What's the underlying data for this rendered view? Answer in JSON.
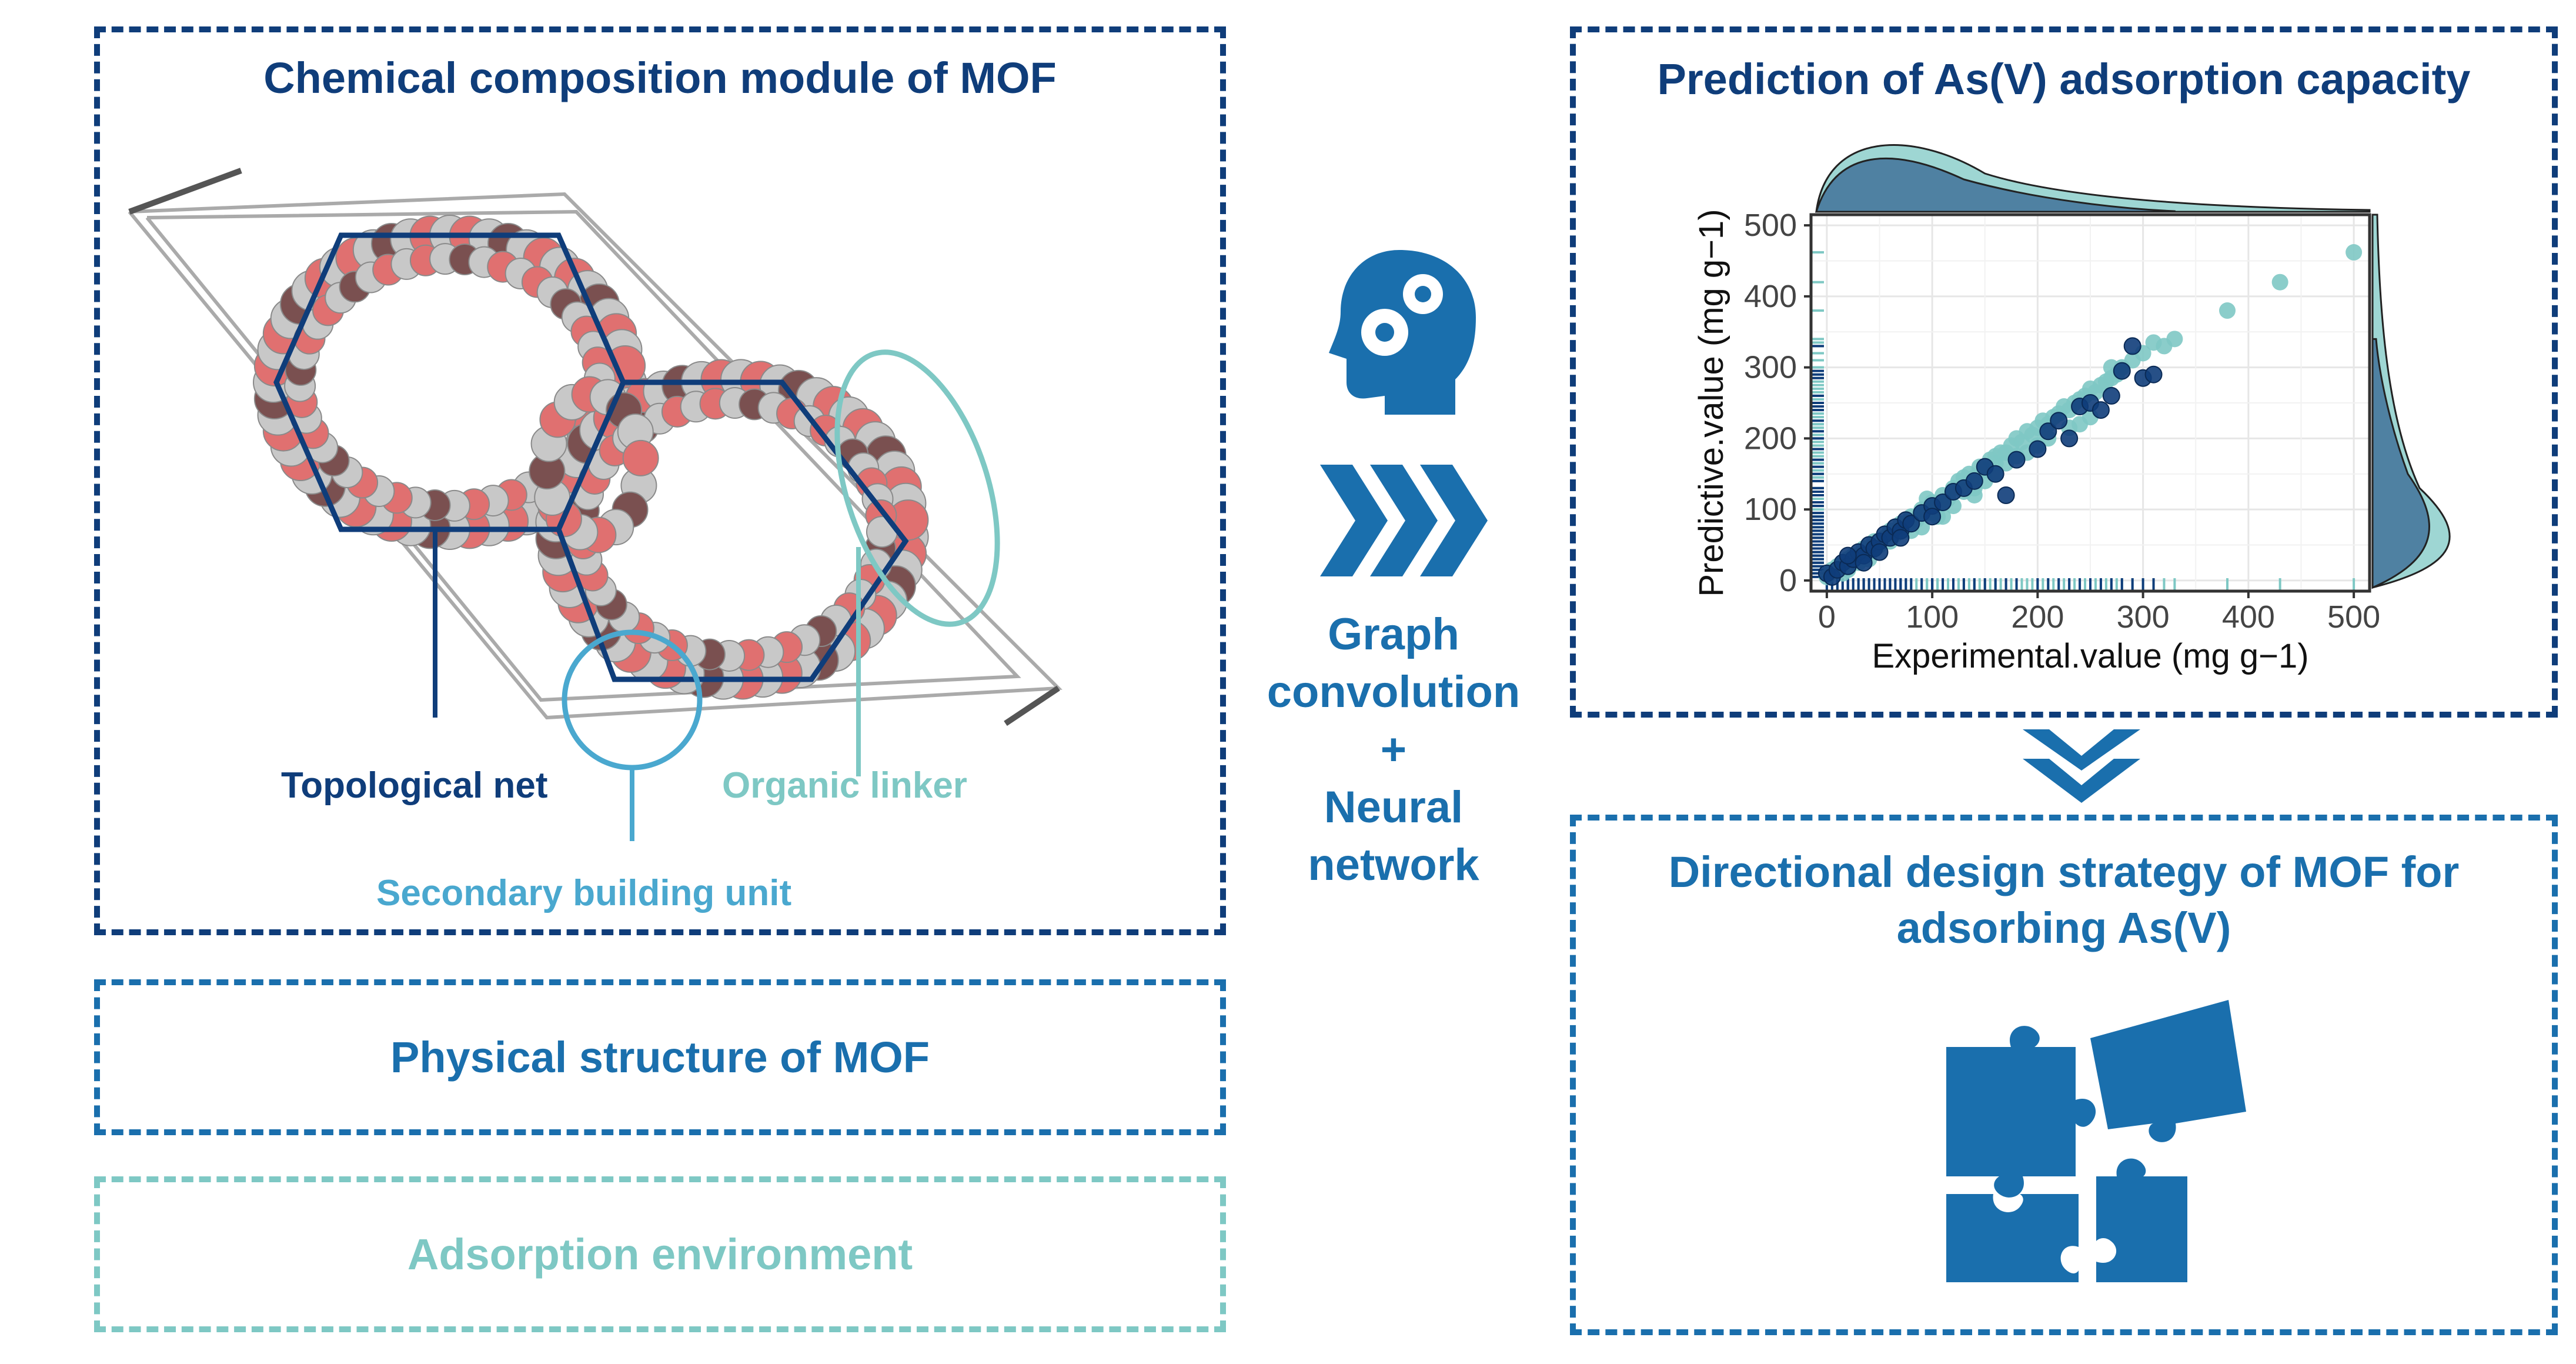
{
  "colors": {
    "dark_blue": "#0f3d7a",
    "mid_blue": "#1a6fad",
    "teal": "#7ec8c4",
    "light_blue": "#4aa8cf",
    "atom_red": "#e07070",
    "atom_dark": "#7a5050",
    "atom_grey": "#c8c8c8"
  },
  "chemical_panel": {
    "title": "Chemical composition module of MOF",
    "labels": {
      "topological_net": "Topological net",
      "organic_linker": "Organic linker",
      "secondary_building_unit": "Secondary building unit"
    }
  },
  "physical_panel": {
    "title": "Physical structure of MOF"
  },
  "environment_panel": {
    "title": "Adsorption environment"
  },
  "middle": {
    "icons": [
      "head-gears-icon",
      "triple-chevron-right-icon"
    ],
    "text": [
      "Graph",
      "convolution",
      "+",
      "Neural",
      "network"
    ]
  },
  "prediction_panel": {
    "title": "Prediction of As(V)  adsorption capacity"
  },
  "design_panel": {
    "title_line1": "Directional design strategy  of MOF for",
    "title_line2": "adsorbing As(V)",
    "icon": "puzzle-pieces-icon"
  },
  "chart_data": {
    "type": "scatter",
    "xlabel": "Experimental.value (mg g−1)",
    "ylabel": "Predictive.value (mg g−1)",
    "xlim": [
      -15,
      515
    ],
    "ylim": [
      -15,
      515
    ],
    "x_ticks": [
      "0",
      "100",
      "200",
      "300",
      "400",
      "500"
    ],
    "y_ticks": [
      "0",
      "100",
      "200",
      "300",
      "400",
      "500"
    ],
    "grid": true,
    "marginal": "density top and right, rug on axes",
    "series": [
      {
        "color": "#7ec8c4",
        "points": [
          [
            0,
            5
          ],
          [
            5,
            15
          ],
          [
            10,
            20
          ],
          [
            15,
            10
          ],
          [
            20,
            30
          ],
          [
            25,
            35
          ],
          [
            30,
            25
          ],
          [
            35,
            45
          ],
          [
            40,
            40
          ],
          [
            45,
            55
          ],
          [
            50,
            50
          ],
          [
            55,
            60
          ],
          [
            60,
            70
          ],
          [
            65,
            65
          ],
          [
            70,
            80
          ],
          [
            75,
            75
          ],
          [
            80,
            90
          ],
          [
            85,
            85
          ],
          [
            90,
            100
          ],
          [
            95,
            95
          ],
          [
            100,
            110
          ],
          [
            105,
            105
          ],
          [
            110,
            120
          ],
          [
            115,
            115
          ],
          [
            120,
            130
          ],
          [
            125,
            140
          ],
          [
            130,
            125
          ],
          [
            135,
            150
          ],
          [
            140,
            145
          ],
          [
            145,
            160
          ],
          [
            150,
            155
          ],
          [
            155,
            170
          ],
          [
            160,
            175
          ],
          [
            165,
            180
          ],
          [
            170,
            165
          ],
          [
            175,
            190
          ],
          [
            180,
            200
          ],
          [
            185,
            195
          ],
          [
            190,
            210
          ],
          [
            195,
            205
          ],
          [
            200,
            215
          ],
          [
            205,
            225
          ],
          [
            210,
            200
          ],
          [
            215,
            230
          ],
          [
            220,
            235
          ],
          [
            225,
            245
          ],
          [
            230,
            240
          ],
          [
            235,
            250
          ],
          [
            240,
            255
          ],
          [
            245,
            260
          ],
          [
            250,
            270
          ],
          [
            255,
            265
          ],
          [
            260,
            275
          ],
          [
            265,
            280
          ],
          [
            270,
            285
          ],
          [
            275,
            290
          ],
          [
            280,
            300
          ],
          [
            290,
            310
          ],
          [
            300,
            320
          ],
          [
            310,
            335
          ],
          [
            320,
            330
          ],
          [
            330,
            340
          ],
          [
            380,
            380
          ],
          [
            430,
            420
          ],
          [
            500,
            462
          ],
          [
            110,
            90
          ],
          [
            130,
            145
          ],
          [
            150,
            140
          ],
          [
            170,
            180
          ],
          [
            190,
            180
          ],
          [
            210,
            220
          ],
          [
            230,
            215
          ],
          [
            60,
            55
          ],
          [
            90,
            75
          ],
          [
            100,
            95
          ],
          [
            120,
            105
          ],
          [
            140,
            120
          ],
          [
            160,
            150
          ],
          [
            40,
            30
          ],
          [
            20,
            15
          ],
          [
            80,
            70
          ],
          [
            250,
            230
          ],
          [
            270,
            300
          ],
          [
            240,
            220
          ],
          [
            200,
            190
          ],
          [
            180,
            175
          ],
          [
            160,
            165
          ],
          [
            140,
            130
          ],
          [
            95,
            115
          ],
          [
            105,
            90
          ]
        ]
      },
      {
        "color": "#0f3d7a",
        "points": [
          [
            0,
            10
          ],
          [
            5,
            5
          ],
          [
            10,
            15
          ],
          [
            15,
            25
          ],
          [
            20,
            20
          ],
          [
            25,
            30
          ],
          [
            30,
            40
          ],
          [
            35,
            35
          ],
          [
            40,
            50
          ],
          [
            45,
            45
          ],
          [
            50,
            55
          ],
          [
            55,
            65
          ],
          [
            60,
            60
          ],
          [
            65,
            75
          ],
          [
            70,
            70
          ],
          [
            75,
            85
          ],
          [
            80,
            80
          ],
          [
            90,
            95
          ],
          [
            100,
            105
          ],
          [
            110,
            110
          ],
          [
            120,
            125
          ],
          [
            130,
            130
          ],
          [
            140,
            140
          ],
          [
            150,
            160
          ],
          [
            160,
            150
          ],
          [
            170,
            120
          ],
          [
            180,
            170
          ],
          [
            200,
            185
          ],
          [
            210,
            210
          ],
          [
            220,
            225
          ],
          [
            230,
            200
          ],
          [
            240,
            245
          ],
          [
            250,
            250
          ],
          [
            260,
            240
          ],
          [
            270,
            260
          ],
          [
            280,
            295
          ],
          [
            290,
            330
          ],
          [
            300,
            285
          ],
          [
            310,
            290
          ],
          [
            20,
            35
          ],
          [
            35,
            25
          ],
          [
            50,
            40
          ],
          [
            70,
            60
          ],
          [
            100,
            90
          ]
        ]
      }
    ]
  }
}
